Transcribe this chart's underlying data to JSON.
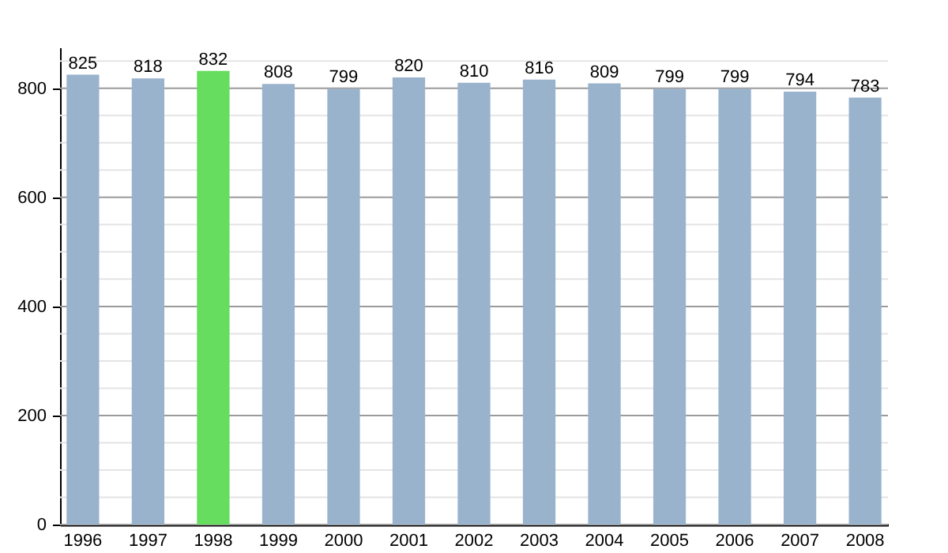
{
  "chart_data": {
    "type": "bar",
    "categories": [
      "1996",
      "1997",
      "1998",
      "1999",
      "2000",
      "2001",
      "2002",
      "2003",
      "2004",
      "2005",
      "2006",
      "2007",
      "2008"
    ],
    "values": [
      825,
      818,
      832,
      808,
      799,
      820,
      810,
      816,
      809,
      799,
      799,
      794,
      783
    ],
    "colors": [
      "#9ab3cd",
      "#9ab3cd",
      "#66dd5e",
      "#9ab3cd",
      "#9ab3cd",
      "#9ab3cd",
      "#9ab3cd",
      "#9ab3cd",
      "#9ab3cd",
      "#9ab3cd",
      "#9ab3cd",
      "#9ab3cd",
      "#9ab3cd"
    ],
    "ylim": [
      0,
      875
    ],
    "yticks": [
      0,
      {
        "value": 50,
        "label": null
      },
      {
        "value": 100,
        "label": null
      },
      {
        "value": 150,
        "label": null
      },
      200,
      {
        "value": 250,
        "label": null
      },
      {
        "value": 300,
        "label": null
      },
      {
        "value": 350,
        "label": null
      },
      400,
      {
        "value": 450,
        "label": null
      },
      {
        "value": 500,
        "label": null
      },
      {
        "value": 550,
        "label": null
      },
      600,
      {
        "value": 650,
        "label": null
      },
      {
        "value": 700,
        "label": null
      },
      {
        "value": 750,
        "label": null
      },
      800,
      {
        "value": 850,
        "label": null
      }
    ],
    "grid": true,
    "data_labels": true
  }
}
